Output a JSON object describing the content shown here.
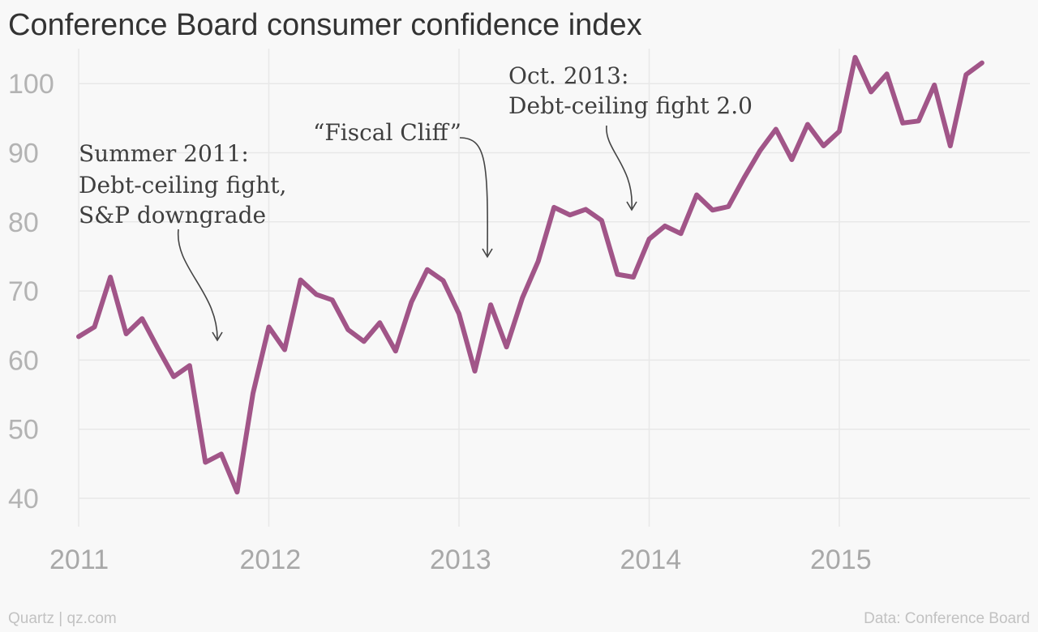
{
  "header": {
    "title": "Conference Board consumer confidence index"
  },
  "footer": {
    "left": "Quartz | qz.com",
    "right": "Data: Conference Board"
  },
  "chart_data": {
    "type": "line",
    "title": "Conference Board consumer confidence index",
    "xlabel": "",
    "ylabel": "",
    "xlim": [
      2011.0,
      2016.0
    ],
    "ylim": [
      36,
      104
    ],
    "yticks": [
      40,
      50,
      60,
      70,
      80,
      90,
      100
    ],
    "xticks": [
      {
        "value": 2011,
        "label": "2011"
      },
      {
        "value": 2012,
        "label": "2012"
      },
      {
        "value": 2013,
        "label": "2013"
      },
      {
        "value": 2014,
        "label": "2014"
      },
      {
        "value": 2015,
        "label": "2015"
      }
    ],
    "grid": true,
    "series": [
      {
        "color": "#a15588",
        "x_start": 2011.0,
        "x_step": 0.0833333,
        "values": [
          63.4,
          64.8,
          72.0,
          63.8,
          66.0,
          61.7,
          57.6,
          59.2,
          45.2,
          46.4,
          40.9,
          55.2,
          64.8,
          61.5,
          71.6,
          69.5,
          68.7,
          64.4,
          62.7,
          65.4,
          61.3,
          68.4,
          73.1,
          71.5,
          66.7,
          58.4,
          68.0,
          61.9,
          69.0,
          74.3,
          82.1,
          81.0,
          81.8,
          80.2,
          72.4,
          72.0,
          77.5,
          79.4,
          78.3,
          83.9,
          81.7,
          82.2,
          86.4,
          90.3,
          93.4,
          89.0,
          94.1,
          91.0,
          93.1,
          103.8,
          98.8,
          101.4,
          94.3,
          94.6,
          99.8,
          91.0,
          101.3,
          103.0
        ]
      }
    ],
    "annotations": [
      {
        "id": "summer-2011",
        "lines": [
          "Summer 2011:",
          "Debt-ceiling fight,",
          "S&P downgrade"
        ]
      },
      {
        "id": "fiscal-cliff",
        "lines": [
          "“Fiscal Cliff”"
        ]
      },
      {
        "id": "oct-2013",
        "lines": [
          "Oct. 2013:",
          "Debt-ceiling fight 2.0"
        ]
      }
    ]
  }
}
